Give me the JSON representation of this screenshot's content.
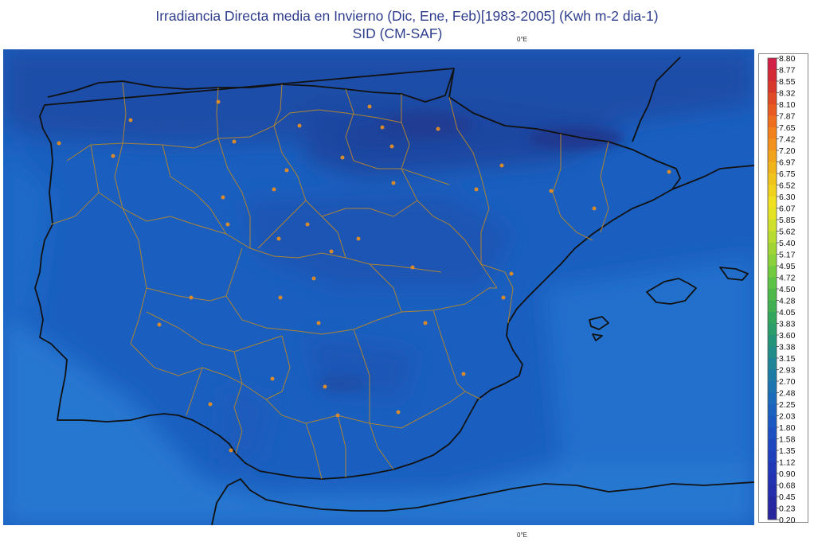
{
  "header": {
    "title_line1": "Irradiancia Directa media en Invierno (Dic, Ene, Feb)[1983-2005] (Kwh m-2 dia-1)",
    "title_line2": "SID (CM-SAF)"
  },
  "map": {
    "meridian_label_top": "0°E",
    "meridian_label_bottom": "0°E",
    "base_color": "#1a5fbf",
    "sea_color": "#1f74cc",
    "dark_color": "#1b4aa8",
    "coastline_color": "#111111",
    "border_color": "#b5862c",
    "capital_marker_color": "#d98a2b"
  },
  "legend": {
    "labels": [
      "8.80",
      "8.77",
      "8.55",
      "8.32",
      "8.10",
      "7.87",
      "7.65",
      "7.42",
      "7.20",
      "6.97",
      "6.75",
      "6.52",
      "6.30",
      "6.07",
      "5.85",
      "5.62",
      "5.40",
      "5.17",
      "4.95",
      "4.72",
      "4.50",
      "4.28",
      "4.05",
      "3.83",
      "3.60",
      "3.38",
      "3.15",
      "2.93",
      "2.70",
      "2.48",
      "2.25",
      "2.03",
      "1.80",
      "1.58",
      "1.35",
      "1.12",
      "0.90",
      "0.68",
      "0.45",
      "0.23",
      "0.20"
    ],
    "colors": [
      "#d21f46",
      "#d42a35",
      "#d8382b",
      "#e04a25",
      "#e85c21",
      "#ee6e1f",
      "#f2801d",
      "#f2921c",
      "#f2a31c",
      "#f1b51b",
      "#f0c41c",
      "#f0d21e",
      "#efe021",
      "#e3e324",
      "#cfe02a",
      "#b8db2f",
      "#a1d535",
      "#8ad03a",
      "#72ca3f",
      "#5cc244",
      "#4db84a",
      "#3faf52",
      "#33a65d",
      "#2a9d6a",
      "#249478",
      "#218c88",
      "#1f8497",
      "#1d7ca6",
      "#1b74b2",
      "#1a6bbb",
      "#1a62c0",
      "#1b59c2",
      "#1c50c2",
      "#1d48c0",
      "#1e40bd",
      "#2038b8",
      "#2232b2",
      "#242dab",
      "#2628a3",
      "#28249b"
    ]
  }
}
